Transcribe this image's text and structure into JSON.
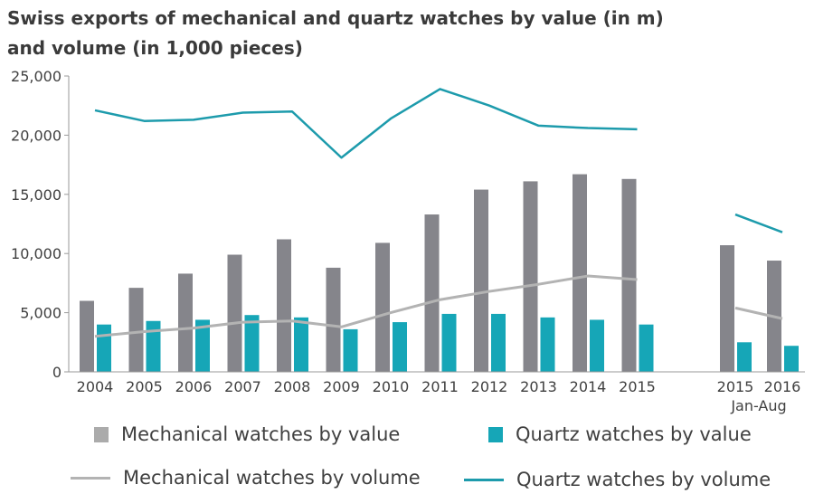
{
  "title_line1": "Swiss exports of mechanical and quartz watches by value (in m)",
  "title_line2": "and volume (in 1,000 pieces)",
  "colors": {
    "mech_value": "#85858b",
    "quartz_value": "#16a6b7",
    "mech_volume": "#b3b3b3",
    "quartz_volume": "#1d9bac",
    "axis": "#9a9a9a"
  },
  "chart_data": {
    "type": "bar",
    "categories": [
      "2004",
      "2005",
      "2006",
      "2007",
      "2008",
      "2009",
      "2010",
      "2011",
      "2012",
      "2013",
      "2014",
      "2015",
      "2015 Jan-Aug",
      "2016 Jan-Aug"
    ],
    "ylim": [
      0,
      25000
    ],
    "yticks": [
      "0",
      "5,000",
      "10,000",
      "15,000",
      "20,000",
      "25,000"
    ],
    "x_tick_labels": [
      "2004",
      "2005",
      "2006",
      "2007",
      "2008",
      "2009",
      "2010",
      "2011",
      "2012",
      "2013",
      "2014",
      "2015",
      "2015",
      "2016"
    ],
    "x_group_label": "Jan-Aug",
    "series": [
      {
        "name": "Mechanical watches by value",
        "kind": "bar",
        "values": [
          6000,
          7100,
          8300,
          9900,
          11200,
          8800,
          10900,
          13300,
          15400,
          16100,
          16700,
          16300,
          10700,
          9400
        ]
      },
      {
        "name": "Quartz watches by value",
        "kind": "bar",
        "values": [
          4000,
          4300,
          4400,
          4800,
          4600,
          3600,
          4200,
          4900,
          4900,
          4600,
          4400,
          4000,
          2500,
          2200
        ]
      },
      {
        "name": "Mechanical watches by volume",
        "kind": "line",
        "values": [
          3000,
          3400,
          3700,
          4200,
          4300,
          3800,
          5000,
          6100,
          6800,
          7400,
          8100,
          7800,
          5400,
          4500
        ]
      },
      {
        "name": "Quartz watches by volume",
        "kind": "line",
        "values": [
          22100,
          21200,
          21300,
          21900,
          22000,
          18100,
          21400,
          23900,
          22500,
          20800,
          20600,
          20500,
          13300,
          11800
        ]
      }
    ]
  }
}
